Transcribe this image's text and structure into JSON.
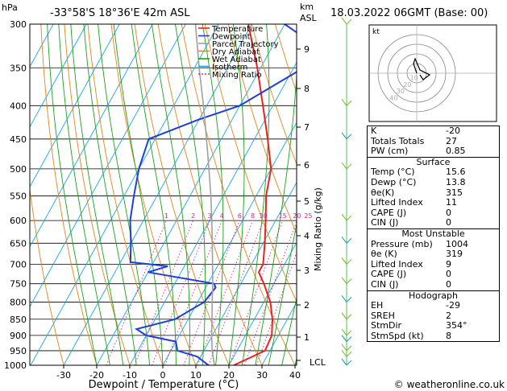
{
  "header": {
    "hpa_label": "hPa",
    "location": "-33°58'S  18°36'E  42m  ASL",
    "km_label": "km",
    "asl_label": "ASL",
    "datetime": "18.03.2022  06GMT  (Base: 00)"
  },
  "legend": [
    "Temperature",
    "Dewpoint",
    "Parcel Trajectory",
    "Dry Adiabat",
    "Wet Adiabat",
    "Isotherm",
    "Mixing Ratio"
  ],
  "colors": {
    "temperature": "#e8231e",
    "dewpoint": "#1e3fd8",
    "parcel": "#a0a0a0",
    "dry_adiabat": "#e0861a",
    "wet_adiabat": "#1aa01a",
    "isotherm": "#19a6e6",
    "mixing_ratio": "#d0288c"
  },
  "chart_data": {
    "type": "line",
    "title": "",
    "xlabel": "Dewpoint / Temperature (°C)",
    "ylabel": "",
    "pressure_levels": [
      300,
      350,
      400,
      450,
      500,
      550,
      600,
      650,
      700,
      750,
      800,
      850,
      900,
      950,
      1000
    ],
    "x_ticks": [
      -30,
      -20,
      -10,
      0,
      10,
      20,
      30,
      40
    ],
    "xlim": [
      -40,
      40
    ],
    "ylim": [
      1000,
      300
    ],
    "km_ticks": [
      "1",
      "2",
      "3",
      "4",
      "5",
      "6",
      "7",
      "8",
      "9"
    ],
    "lcl_label": "LCL",
    "right_axis_label": "Mixing Ratio (g/kg)",
    "mixing_ratio_labels": [
      "1",
      "2",
      "3",
      "4",
      "6",
      "8",
      "10",
      "15",
      "20",
      "25"
    ],
    "series": [
      {
        "name": "Temperature",
        "points": [
          [
            1000,
            21.5
          ],
          [
            950,
            28.5
          ],
          [
            900,
            28
          ],
          [
            850,
            25.5
          ],
          [
            800,
            22
          ],
          [
            750,
            17
          ],
          [
            720,
            13.5
          ],
          [
            700,
            13.5
          ],
          [
            650,
            10.5
          ],
          [
            600,
            7
          ],
          [
            550,
            3
          ],
          [
            500,
            0
          ],
          [
            450,
            -6
          ],
          [
            400,
            -13
          ],
          [
            350,
            -21
          ],
          [
            300,
            -31
          ]
        ]
      },
      {
        "name": "Dewpoint",
        "points": [
          [
            1000,
            13.8
          ],
          [
            970,
            9
          ],
          [
            950,
            2
          ],
          [
            920,
            0
          ],
          [
            900,
            -10
          ],
          [
            880,
            -14
          ],
          [
            850,
            -4
          ],
          [
            800,
            2
          ],
          [
            760,
            3
          ],
          [
            750,
            2
          ],
          [
            720,
            -20
          ],
          [
            705,
            -15
          ],
          [
            695,
            -27
          ],
          [
            650,
            -30
          ],
          [
            600,
            -34
          ],
          [
            550,
            -37
          ],
          [
            500,
            -40
          ],
          [
            450,
            -42
          ],
          [
            420,
            -30
          ],
          [
            400,
            -20
          ],
          [
            350,
            -7
          ],
          [
            330,
            -8
          ],
          [
            320,
            -9
          ],
          [
            300,
            -20
          ]
        ]
      },
      {
        "name": "Parcel Trajectory",
        "points": [
          [
            1000,
            15.6
          ],
          [
            950,
            12.5
          ],
          [
            900,
            9.8
          ],
          [
            850,
            7.2
          ],
          [
            800,
            4.4
          ],
          [
            750,
            1.5
          ],
          [
            700,
            -1.8
          ],
          [
            650,
            -5.4
          ],
          [
            600,
            -9.3
          ],
          [
            550,
            -13.7
          ],
          [
            500,
            -18.8
          ],
          [
            450,
            -24.5
          ],
          [
            400,
            -31
          ],
          [
            350,
            -38.6
          ],
          [
            300,
            -47
          ]
        ]
      }
    ]
  },
  "hodograph": {
    "label": "kt",
    "ring_labels": [
      "10",
      "20",
      "30",
      "40"
    ]
  },
  "indices": {
    "general": [
      {
        "label": "K",
        "value": "-20"
      },
      {
        "label": "Totals Totals",
        "value": "27"
      },
      {
        "label": "PW (cm)",
        "value": "0.85"
      }
    ],
    "surface_title": "Surface",
    "surface": [
      {
        "label": "Temp (°C)",
        "value": "15.6"
      },
      {
        "label": "Dewp (°C)",
        "value": "13.8"
      },
      {
        "label": "θe(K)",
        "value": "315"
      },
      {
        "label": "Lifted Index",
        "value": "11"
      },
      {
        "label": "CAPE (J)",
        "value": "0"
      },
      {
        "label": "CIN (J)",
        "value": "0"
      }
    ],
    "unstable_title": "Most Unstable",
    "unstable": [
      {
        "label": "Pressure (mb)",
        "value": "1004"
      },
      {
        "label": "θe (K)",
        "value": "319"
      },
      {
        "label": "Lifted Index",
        "value": "9"
      },
      {
        "label": "CAPE (J)",
        "value": "0"
      },
      {
        "label": "CIN (J)",
        "value": "0"
      }
    ],
    "hodograph_title": "Hodograph",
    "hodo": [
      {
        "label": "EH",
        "value": "-29"
      },
      {
        "label": "SREH",
        "value": "2"
      },
      {
        "label": "StmDir",
        "value": "354°"
      },
      {
        "label": "StmSpd (kt)",
        "value": "8"
      }
    ]
  },
  "footer": "© weatheronline.co.uk"
}
